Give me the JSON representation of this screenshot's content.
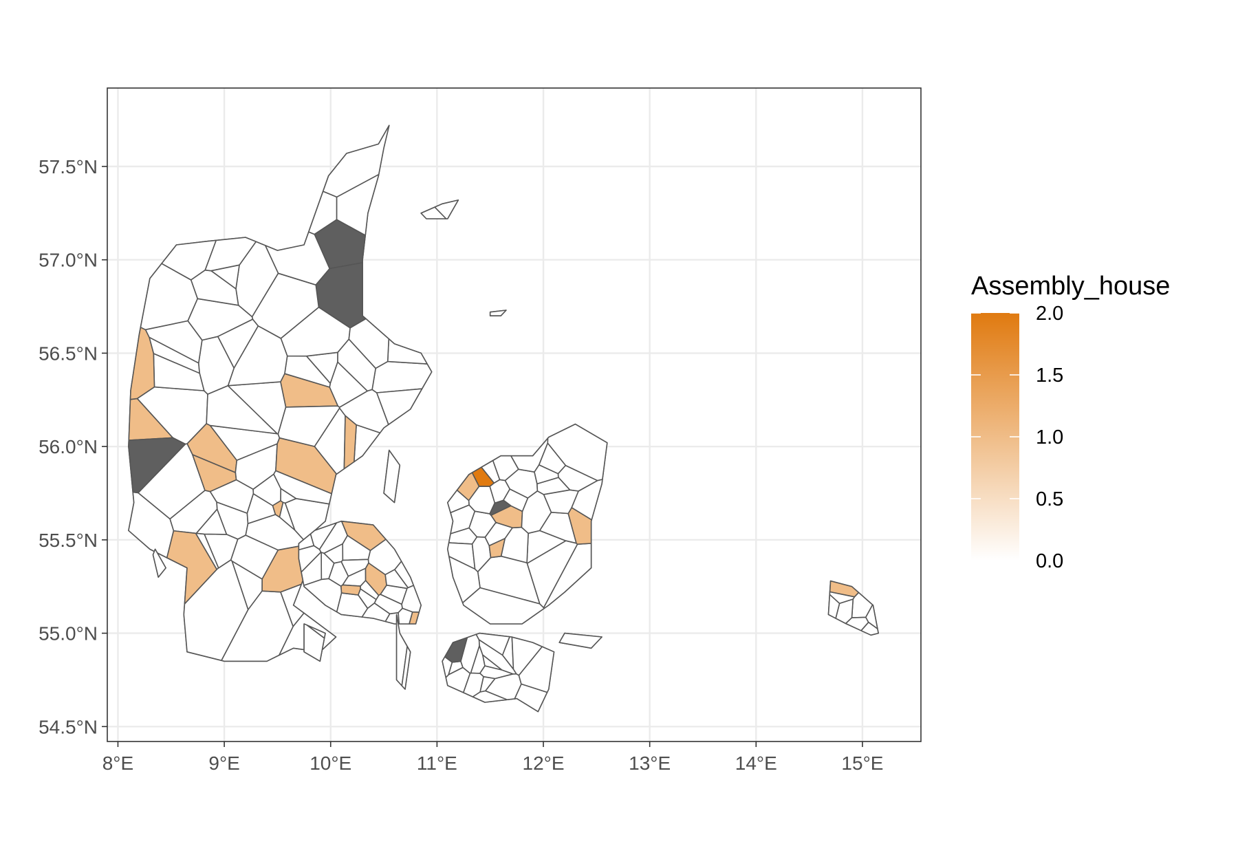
{
  "chart_data": {
    "type": "map",
    "projection": "longitude-latitude",
    "xlim": [
      7.9,
      15.55
    ],
    "ylim": [
      54.42,
      57.92
    ],
    "x_ticks": [
      8,
      9,
      10,
      11,
      12,
      13,
      14,
      15
    ],
    "x_tick_labels": [
      "8°E",
      "9°E",
      "10°E",
      "11°E",
      "12°E",
      "13°E",
      "14°E",
      "15°E"
    ],
    "y_ticks": [
      54.5,
      55.0,
      55.5,
      56.0,
      56.5,
      57.0,
      57.5
    ],
    "y_tick_labels": [
      "54.5°N",
      "55.0°N",
      "55.5°N",
      "56.0°N",
      "56.5°N",
      "57.0°N",
      "57.5°N"
    ],
    "grid": true,
    "legend": {
      "title": "Assembly_house",
      "placement": "right",
      "range": [
        0,
        2
      ],
      "ticks": [
        0,
        0.5,
        1,
        1.5,
        2
      ],
      "tick_labels": [
        "0.0",
        "0.5",
        "1.0",
        "1.5",
        "2.0"
      ],
      "color_low": "#ffffff",
      "color_high": "#e07a10"
    },
    "na_color": "#5f5f5f",
    "zero_color": "#ffffff",
    "regions": [
      {
        "name": "Jutland",
        "outline": [
          [
            8.1,
            55.55
          ],
          [
            8.15,
            55.7
          ],
          [
            8.1,
            56.0
          ],
          [
            8.12,
            56.3
          ],
          [
            8.2,
            56.6
          ],
          [
            8.3,
            56.9
          ],
          [
            8.55,
            57.08
          ],
          [
            8.85,
            57.1
          ],
          [
            9.2,
            57.12
          ],
          [
            9.5,
            57.05
          ],
          [
            9.75,
            57.08
          ],
          [
            9.98,
            57.45
          ],
          [
            10.15,
            57.57
          ],
          [
            10.45,
            57.62
          ],
          [
            10.55,
            57.72
          ],
          [
            10.5,
            57.6
          ],
          [
            10.45,
            57.45
          ],
          [
            10.35,
            57.25
          ],
          [
            10.3,
            57.0
          ],
          [
            10.3,
            56.7
          ],
          [
            10.6,
            56.55
          ],
          [
            10.85,
            56.5
          ],
          [
            10.95,
            56.4
          ],
          [
            10.75,
            56.2
          ],
          [
            10.5,
            56.1
          ],
          [
            10.3,
            55.95
          ],
          [
            10.05,
            55.85
          ],
          [
            9.95,
            55.6
          ],
          [
            9.75,
            55.5
          ],
          [
            9.75,
            55.3
          ],
          [
            9.65,
            55.15
          ],
          [
            10.05,
            54.98
          ],
          [
            9.9,
            54.9
          ],
          [
            9.65,
            54.92
          ],
          [
            9.4,
            54.85
          ],
          [
            9.0,
            54.85
          ],
          [
            8.65,
            54.9
          ],
          [
            8.62,
            55.1
          ],
          [
            8.65,
            55.35
          ],
          [
            8.3,
            55.45
          ],
          [
            8.1,
            55.55
          ]
        ],
        "values": [
          0,
          0,
          1,
          0,
          0,
          1,
          0,
          0,
          0,
          1,
          0,
          0,
          0,
          0,
          1,
          0,
          0,
          0,
          "NA",
          0,
          0,
          0,
          1,
          0,
          0,
          0,
          0,
          1,
          0,
          0,
          0,
          0,
          0,
          1,
          0,
          0,
          0,
          0,
          "NA",
          0,
          0,
          0,
          0,
          1,
          0,
          0,
          0,
          0,
          0,
          0,
          0,
          "NA",
          0,
          0,
          1,
          0,
          0,
          0,
          0,
          0,
          0,
          0,
          0,
          1,
          0,
          0,
          0,
          0,
          0,
          0
        ]
      },
      {
        "name": "Funen",
        "outline": [
          [
            9.7,
            55.48
          ],
          [
            9.85,
            55.55
          ],
          [
            10.1,
            55.6
          ],
          [
            10.4,
            55.58
          ],
          [
            10.6,
            55.45
          ],
          [
            10.75,
            55.3
          ],
          [
            10.85,
            55.15
          ],
          [
            10.8,
            55.05
          ],
          [
            10.6,
            55.05
          ],
          [
            10.4,
            55.08
          ],
          [
            10.1,
            55.1
          ],
          [
            9.95,
            55.15
          ],
          [
            9.75,
            55.25
          ],
          [
            9.7,
            55.4
          ],
          [
            9.7,
            55.48
          ]
        ],
        "values": [
          0,
          0,
          0,
          1,
          0,
          0,
          0,
          1,
          0,
          0,
          0,
          0,
          0,
          1,
          0,
          0,
          0,
          0,
          0,
          0,
          0,
          0,
          1,
          0,
          0,
          0,
          0,
          0
        ]
      },
      {
        "name": "Zealand",
        "outline": [
          [
            11.15,
            55.6
          ],
          [
            11.1,
            55.7
          ],
          [
            11.3,
            55.85
          ],
          [
            11.6,
            55.95
          ],
          [
            11.9,
            55.95
          ],
          [
            12.05,
            56.05
          ],
          [
            12.3,
            56.12
          ],
          [
            12.6,
            56.02
          ],
          [
            12.55,
            55.8
          ],
          [
            12.45,
            55.6
          ],
          [
            12.45,
            55.35
          ],
          [
            12.2,
            55.22
          ],
          [
            12.05,
            55.15
          ],
          [
            11.8,
            55.05
          ],
          [
            11.5,
            55.05
          ],
          [
            11.25,
            55.15
          ],
          [
            11.15,
            55.3
          ],
          [
            11.1,
            55.45
          ],
          [
            11.15,
            55.6
          ]
        ],
        "values": [
          0,
          0,
          1,
          0,
          0,
          0,
          0,
          0,
          1,
          0,
          0,
          0,
          0,
          2,
          0,
          0,
          0,
          0,
          0,
          1,
          0,
          0,
          0,
          0,
          "NA",
          0,
          0,
          0,
          0,
          1,
          0,
          0,
          0,
          0,
          0,
          0
        ]
      },
      {
        "name": "Lolland-Falster",
        "outline": [
          [
            11.05,
            54.85
          ],
          [
            11.15,
            54.95
          ],
          [
            11.4,
            55.0
          ],
          [
            11.7,
            54.98
          ],
          [
            11.9,
            54.95
          ],
          [
            12.1,
            54.9
          ],
          [
            12.05,
            54.7
          ],
          [
            11.95,
            54.58
          ],
          [
            11.75,
            54.65
          ],
          [
            11.45,
            54.63
          ],
          [
            11.1,
            54.72
          ],
          [
            11.05,
            54.85
          ]
        ],
        "values": [
          0,
          0,
          0,
          0,
          0,
          0,
          0,
          0,
          0,
          0,
          0,
          0,
          0,
          0,
          0,
          0,
          "NA",
          0
        ]
      },
      {
        "name": "Bornholm",
        "outline": [
          [
            14.7,
            55.28
          ],
          [
            14.9,
            55.25
          ],
          [
            15.1,
            55.15
          ],
          [
            15.15,
            55.0
          ],
          [
            15.08,
            54.99
          ],
          [
            14.85,
            55.05
          ],
          [
            14.68,
            55.1
          ],
          [
            14.7,
            55.28
          ]
        ],
        "values": [
          0,
          0,
          0,
          0,
          1,
          0,
          0,
          0
        ]
      },
      {
        "name": "Laeso",
        "outline": [
          [
            10.85,
            57.25
          ],
          [
            11.05,
            57.3
          ],
          [
            11.2,
            57.32
          ],
          [
            11.1,
            57.22
          ],
          [
            10.9,
            57.22
          ],
          [
            10.85,
            57.25
          ]
        ],
        "values": [
          0,
          0
        ]
      },
      {
        "name": "Anholt",
        "outline": [
          [
            11.5,
            56.72
          ],
          [
            11.65,
            56.73
          ],
          [
            11.6,
            56.7
          ],
          [
            11.5,
            56.7
          ],
          [
            11.5,
            56.72
          ]
        ],
        "values": [
          0
        ]
      },
      {
        "name": "Samso",
        "outline": [
          [
            10.55,
            55.98
          ],
          [
            10.65,
            55.9
          ],
          [
            10.6,
            55.7
          ],
          [
            10.5,
            55.75
          ],
          [
            10.55,
            55.98
          ]
        ],
        "values": [
          0
        ]
      },
      {
        "name": "Langeland",
        "outline": [
          [
            10.62,
            55.1
          ],
          [
            10.65,
            55.0
          ],
          [
            10.75,
            54.9
          ],
          [
            10.7,
            54.7
          ],
          [
            10.62,
            54.75
          ],
          [
            10.62,
            55.1
          ]
        ],
        "values": [
          0,
          0
        ]
      },
      {
        "name": "Als",
        "outline": [
          [
            9.75,
            55.05
          ],
          [
            9.95,
            55.0
          ],
          [
            9.9,
            54.85
          ],
          [
            9.75,
            54.9
          ],
          [
            9.75,
            55.05
          ]
        ],
        "values": [
          0,
          0
        ]
      },
      {
        "name": "Mon",
        "outline": [
          [
            12.2,
            55.0
          ],
          [
            12.55,
            54.98
          ],
          [
            12.45,
            54.92
          ],
          [
            12.15,
            54.95
          ],
          [
            12.2,
            55.0
          ]
        ],
        "values": [
          0
        ]
      },
      {
        "name": "Fano-Romo",
        "outline": [
          [
            8.35,
            55.45
          ],
          [
            8.45,
            55.35
          ],
          [
            8.38,
            55.3
          ],
          [
            8.33,
            55.42
          ],
          [
            8.35,
            55.45
          ]
        ],
        "values": [
          0
        ]
      }
    ]
  }
}
